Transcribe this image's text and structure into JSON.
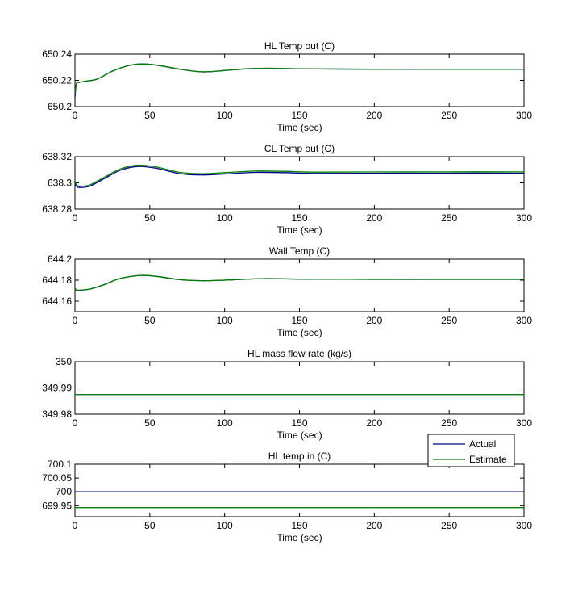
{
  "colors": {
    "actual": "#00008B",
    "estimate": "#008000",
    "axis": "#000000",
    "background": "#ffffff"
  },
  "legend": {
    "placement": "top-right of last subplot",
    "entries": [
      "Actual",
      "Estimate"
    ]
  },
  "chart_data": [
    {
      "type": "line",
      "title": "HL Temp out (C)",
      "xlabel": "Time (sec)",
      "xlim": [
        0,
        300
      ],
      "ylim": [
        650.2,
        650.24
      ],
      "xticks": [
        0,
        50,
        100,
        150,
        200,
        250,
        300
      ],
      "yticks": [
        650.2,
        650.22,
        650.24
      ],
      "ytick_labels": [
        "650.2",
        "650.22",
        "650.24"
      ],
      "series": [
        {
          "name": "Actual",
          "x": [
            0,
            1,
            3,
            8,
            15,
            25,
            35,
            44,
            55,
            70,
            85,
            100,
            115,
            130,
            150,
            200,
            250,
            300
          ],
          "y": [
            650.207,
            650.2175,
            650.2185,
            650.2195,
            650.221,
            650.227,
            650.231,
            650.2325,
            650.2315,
            650.2285,
            650.2265,
            650.2275,
            650.2288,
            650.2292,
            650.2288,
            650.2285,
            650.2285,
            650.2285
          ]
        },
        {
          "name": "Estimate",
          "x": [
            0,
            1,
            3,
            8,
            15,
            25,
            35,
            44,
            55,
            70,
            85,
            100,
            115,
            130,
            150,
            200,
            250,
            300
          ],
          "y": [
            650.21,
            650.2175,
            650.2185,
            650.2195,
            650.221,
            650.227,
            650.231,
            650.2325,
            650.2315,
            650.2285,
            650.2265,
            650.2275,
            650.2288,
            650.2292,
            650.2288,
            650.2285,
            650.2285,
            650.2285
          ]
        }
      ]
    },
    {
      "type": "line",
      "title": "CL Temp out (C)",
      "xlabel": "Time (sec)",
      "xlim": [
        0,
        300
      ],
      "ylim": [
        638.28,
        638.32
      ],
      "xticks": [
        0,
        50,
        100,
        150,
        200,
        250,
        300
      ],
      "yticks": [
        638.28,
        638.3,
        638.32
      ],
      "ytick_labels": [
        "638.28",
        "638.3",
        "638.32"
      ],
      "series": [
        {
          "name": "Actual",
          "x": [
            0,
            1,
            3,
            10,
            20,
            30,
            42,
            55,
            70,
            85,
            100,
            120,
            140,
            160,
            200,
            250,
            300
          ],
          "y": [
            638.2995,
            638.2975,
            638.2965,
            638.2975,
            638.3035,
            638.3095,
            638.3125,
            638.311,
            638.307,
            638.306,
            638.3068,
            638.308,
            638.3078,
            638.3072,
            638.3073,
            638.3074,
            638.3074
          ]
        },
        {
          "name": "Estimate",
          "x": [
            0,
            1,
            3,
            10,
            20,
            30,
            42,
            55,
            70,
            85,
            100,
            120,
            140,
            160,
            200,
            250,
            300
          ],
          "y": [
            638.3015,
            638.2985,
            638.2975,
            638.2985,
            638.3045,
            638.3105,
            638.3135,
            638.312,
            638.308,
            638.307,
            638.3078,
            638.309,
            638.3088,
            638.3082,
            638.3083,
            638.3084,
            638.3084
          ]
        }
      ]
    },
    {
      "type": "line",
      "title": "Wall Temp (C)",
      "xlabel": "Time (sec)",
      "xlim": [
        0,
        300
      ],
      "ylim": [
        644.15,
        644.2
      ],
      "xticks": [
        0,
        50,
        100,
        150,
        200,
        250,
        300
      ],
      "yticks": [
        644.16,
        644.18,
        644.2
      ],
      "ytick_labels": [
        "644.16",
        "644.18",
        "644.2"
      ],
      "series": [
        {
          "name": "Actual",
          "x": [
            0,
            1,
            3,
            10,
            20,
            30,
            44,
            55,
            70,
            85,
            100,
            115,
            130,
            150,
            200,
            250,
            300
          ],
          "y": [
            644.172,
            644.1705,
            644.1705,
            644.1715,
            644.176,
            644.1815,
            644.1845,
            644.1835,
            644.1805,
            644.1795,
            644.18,
            644.181,
            644.1815,
            644.181,
            644.1808,
            644.1808,
            644.1808
          ]
        },
        {
          "name": "Estimate",
          "x": [
            0,
            1,
            3,
            10,
            20,
            30,
            44,
            55,
            70,
            85,
            100,
            115,
            130,
            150,
            200,
            250,
            300
          ],
          "y": [
            644.1725,
            644.1705,
            644.1705,
            644.1715,
            644.176,
            644.1815,
            644.1845,
            644.1835,
            644.1805,
            644.1795,
            644.18,
            644.181,
            644.1815,
            644.181,
            644.1808,
            644.1808,
            644.1808
          ]
        }
      ]
    },
    {
      "type": "line",
      "title": "HL mass flow rate (kg/s)",
      "xlabel": "Time (sec)",
      "xlim": [
        0,
        300
      ],
      "ylim": [
        349.98,
        350
      ],
      "xticks": [
        0,
        50,
        100,
        150,
        200,
        250,
        300
      ],
      "yticks": [
        349.98,
        349.99,
        350
      ],
      "ytick_labels": [
        "349.98",
        "349.99",
        "350"
      ],
      "series": [
        {
          "name": "Actual",
          "x": [
            0,
            300
          ],
          "y": [
            349.9875,
            349.9875
          ]
        },
        {
          "name": "Estimate",
          "x": [
            0,
            300
          ],
          "y": [
            349.9875,
            349.9875
          ]
        }
      ]
    },
    {
      "type": "line",
      "title": "HL temp in (C)",
      "xlabel": "Time (sec)",
      "xlim": [
        0,
        300
      ],
      "ylim": [
        699.91,
        700.1
      ],
      "xticks": [
        0,
        50,
        100,
        150,
        200,
        250,
        300
      ],
      "yticks": [
        699.95,
        700,
        700.05,
        700.1
      ],
      "ytick_labels": [
        "699.95",
        "700",
        "700.05",
        "700.1"
      ],
      "series": [
        {
          "name": "Actual",
          "x": [
            0,
            300
          ],
          "y": [
            700,
            700
          ]
        },
        {
          "name": "Estimate",
          "x": [
            0,
            300
          ],
          "y": [
            699.943,
            699.943
          ]
        }
      ]
    }
  ]
}
